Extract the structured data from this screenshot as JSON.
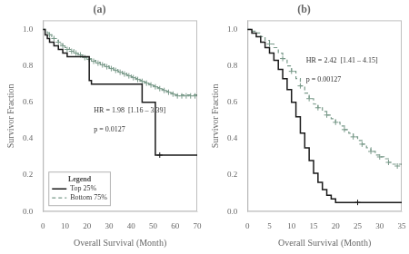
{
  "chart_data": [
    {
      "type": "line",
      "title": "(a)",
      "xlabel": "Overall Survival (Month)",
      "ylabel": "Survivor Fraction",
      "xlim": [
        0,
        70
      ],
      "ylim": [
        0,
        1.05
      ],
      "xticks": [
        0,
        10,
        20,
        30,
        40,
        50,
        60,
        70
      ],
      "yticks": [
        {
          "value": 0.0,
          "label": "0.0"
        },
        0.2,
        0.4,
        0.6,
        0.8,
        {
          "value": 1.0,
          "label": "1.0"
        }
      ],
      "grid": false,
      "legend": "lower left",
      "legend_title": "Legend",
      "annotations": [
        "HR = 1.98  [1.16 – 3.39]",
        "p = 0.0127"
      ],
      "series": [
        {
          "name": "Top 25%",
          "color": "#1a1a1a",
          "line_style": "solid",
          "marker": "plus",
          "x": [
            0,
            1,
            2,
            3,
            5,
            7,
            9,
            11,
            20,
            21,
            22,
            44,
            45,
            50,
            51,
            52,
            53,
            70
          ],
          "values": [
            1.0,
            0.97,
            0.95,
            0.93,
            0.91,
            0.89,
            0.87,
            0.85,
            0.85,
            0.72,
            0.7,
            0.7,
            0.6,
            0.6,
            0.31,
            0.31,
            0.31,
            0.31
          ],
          "censor_x": [
            53
          ],
          "censor_values": [
            0.31
          ]
        },
        {
          "name": "Bottom 75%",
          "color": "#7a9a8a",
          "line_style": "dashed",
          "marker": "plus",
          "x": [
            0,
            1,
            2,
            3,
            4,
            5,
            6,
            7,
            8,
            9,
            10,
            12,
            14,
            16,
            18,
            20,
            22,
            24,
            26,
            28,
            30,
            32,
            34,
            36,
            38,
            40,
            42,
            44,
            46,
            48,
            50,
            52,
            54,
            56,
            58,
            60,
            62,
            64,
            65,
            70
          ],
          "values": [
            1.0,
            0.99,
            0.98,
            0.97,
            0.96,
            0.95,
            0.94,
            0.93,
            0.92,
            0.91,
            0.9,
            0.89,
            0.87,
            0.86,
            0.85,
            0.84,
            0.83,
            0.82,
            0.81,
            0.8,
            0.79,
            0.78,
            0.77,
            0.76,
            0.75,
            0.74,
            0.73,
            0.72,
            0.71,
            0.7,
            0.69,
            0.68,
            0.67,
            0.66,
            0.65,
            0.64,
            0.64,
            0.64,
            0.64,
            0.64
          ],
          "censor_x": [
            3,
            5,
            7,
            9,
            11,
            13,
            15,
            17,
            19,
            21,
            23,
            25,
            27,
            29,
            31,
            33,
            35,
            37,
            39,
            41,
            43,
            45,
            47,
            49,
            51,
            53,
            55,
            57,
            59,
            61,
            63,
            65,
            67,
            69
          ],
          "censor_values": [
            0.97,
            0.95,
            0.93,
            0.91,
            0.89,
            0.88,
            0.87,
            0.86,
            0.845,
            0.835,
            0.825,
            0.815,
            0.805,
            0.795,
            0.785,
            0.775,
            0.765,
            0.755,
            0.745,
            0.735,
            0.725,
            0.715,
            0.705,
            0.695,
            0.685,
            0.675,
            0.665,
            0.655,
            0.645,
            0.635,
            0.635,
            0.635,
            0.635,
            0.635
          ]
        }
      ]
    },
    {
      "type": "line",
      "title": "(b)",
      "xlabel": "Overall Survival (Month)",
      "ylabel": "Survivor Fraction",
      "xlim": [
        0,
        35
      ],
      "ylim": [
        0,
        1.05
      ],
      "xticks": [
        0,
        5,
        10,
        15,
        20,
        25,
        30,
        35
      ],
      "yticks": [
        {
          "value": 0.0,
          "label": "0.0"
        },
        0.2,
        0.4,
        0.6,
        0.8,
        {
          "value": 1.0,
          "label": "1.0"
        }
      ],
      "grid": false,
      "annotations": [
        "HR = 2.42  [1.41 – 4.15]",
        "p = 0.00127"
      ],
      "series": [
        {
          "color": "#1a1a1a",
          "line_style": "solid",
          "marker": "plus",
          "x": [
            0,
            1,
            2,
            3,
            4,
            5,
            6,
            7,
            8,
            9,
            10,
            11,
            12,
            13,
            14,
            15,
            16,
            17,
            18,
            19,
            20,
            22,
            25,
            26,
            35
          ],
          "values": [
            1.0,
            0.98,
            0.96,
            0.93,
            0.9,
            0.87,
            0.83,
            0.78,
            0.73,
            0.67,
            0.6,
            0.52,
            0.43,
            0.35,
            0.28,
            0.21,
            0.16,
            0.12,
            0.09,
            0.07,
            0.05,
            0.05,
            0.05,
            0.05,
            0.05
          ],
          "censor_x": [
            25
          ],
          "censor_values": [
            0.05
          ]
        },
        {
          "color": "#7a9a8a",
          "line_style": "dashed",
          "marker": "plus",
          "x": [
            0,
            1,
            2,
            3,
            4,
            5,
            6,
            7,
            8,
            9,
            10,
            11,
            12,
            13,
            14,
            15,
            16,
            17,
            18,
            19,
            20,
            21,
            22,
            23,
            24,
            25,
            26,
            27,
            28,
            29,
            30,
            31,
            32,
            33,
            35
          ],
          "values": [
            1.0,
            0.99,
            0.98,
            0.96,
            0.94,
            0.92,
            0.9,
            0.87,
            0.84,
            0.8,
            0.77,
            0.73,
            0.69,
            0.65,
            0.62,
            0.59,
            0.57,
            0.55,
            0.53,
            0.51,
            0.49,
            0.47,
            0.45,
            0.43,
            0.41,
            0.39,
            0.37,
            0.35,
            0.33,
            0.31,
            0.3,
            0.29,
            0.27,
            0.26,
            0.25
          ],
          "censor_x": [
            5,
            8,
            10,
            12,
            14,
            16,
            18,
            20,
            22,
            24,
            26,
            28,
            30,
            32,
            34
          ],
          "censor_values": [
            0.92,
            0.84,
            0.77,
            0.69,
            0.62,
            0.57,
            0.53,
            0.49,
            0.45,
            0.41,
            0.37,
            0.33,
            0.3,
            0.27,
            0.25
          ]
        }
      ]
    }
  ]
}
